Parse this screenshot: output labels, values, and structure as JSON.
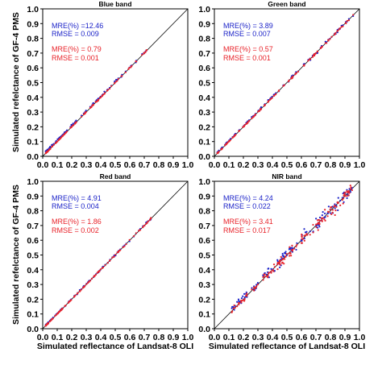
{
  "chart_data": {
    "type": "scatter",
    "xlabel": "Simulated reflectance of Landsat-8 OLI",
    "ylabel": "Simulated  refelctance of GF-4 PMS",
    "xlim": [
      0.0,
      1.0
    ],
    "ylim": [
      0.0,
      1.0
    ],
    "ticks": [
      "0.0",
      "0.1",
      "0.2",
      "0.3",
      "0.4",
      "0.5",
      "0.6",
      "0.7",
      "0.8",
      "0.9",
      "1.0"
    ],
    "colors": {
      "blue": "#1c23c8",
      "red": "#e8232a",
      "line": "#000000"
    },
    "panels": [
      {
        "title": "Blue band",
        "stats": {
          "blue_mre": "MRE(%) =12.46",
          "blue_rmse": "RMSE  =  0.009",
          "red_mre": "MRE(%) = 0.79",
          "red_rmse": "RMSE  = 0.001"
        },
        "x_range": [
          0.02,
          0.72
        ],
        "blue_offset": 0.011,
        "blue_noise": 0.004,
        "red_offset": 0.0,
        "red_noise": 0.002,
        "n_points": 110
      },
      {
        "title": "Green band",
        "stats": {
          "blue_mre": "MRE(%) = 3.89",
          "blue_rmse": "RMSE  = 0.007",
          "red_mre": "MRE(%) = 0.57",
          "red_rmse": "RMSE  =  0.001"
        },
        "x_range": [
          0.02,
          0.96
        ],
        "blue_offset": 0.006,
        "blue_noise": 0.004,
        "red_offset": 0.0,
        "red_noise": 0.002,
        "n_points": 130
      },
      {
        "title": "Red band",
        "stats": {
          "blue_mre": "MRE(%) = 4.91",
          "blue_rmse": "RMSE  = 0.004",
          "red_mre": "MRE(%) = 1.86",
          "red_rmse": "RMSE  = 0.002"
        },
        "x_range": [
          0.02,
          0.75
        ],
        "blue_offset": 0.003,
        "blue_noise": 0.003,
        "red_offset": 0.0,
        "red_noise": 0.002,
        "n_points": 120
      },
      {
        "title": "NIR band",
        "stats": {
          "blue_mre": "MRE(%) = 4.24",
          "blue_rmse": "RMSE  = 0.022",
          "red_mre": "MRE(%) = 3.41",
          "red_rmse": "RMSE  =  0.017"
        },
        "x_range": [
          0.12,
          0.95
        ],
        "blue_offset": 0.012,
        "blue_noise": 0.02,
        "red_offset": 0.0,
        "red_noise": 0.016,
        "n_points": 150
      }
    ]
  }
}
